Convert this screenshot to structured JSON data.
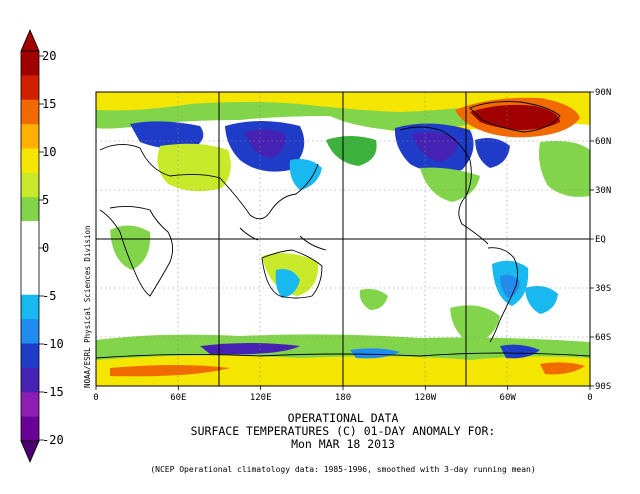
{
  "colorbar": {
    "labels": [
      "20",
      "15",
      "10",
      "5",
      "0",
      "-5",
      "-10",
      "-15",
      "-20"
    ],
    "bands": [
      {
        "color": "#a00000"
      },
      {
        "color": "#d02000"
      },
      {
        "color": "#f06a00"
      },
      {
        "color": "#ffb000"
      },
      {
        "color": "#f5e600"
      },
      {
        "color": "#c8ea2a"
      },
      {
        "color": "#82d54a"
      },
      {
        "color": "#3cb13c"
      },
      {
        "color": "#ffffff"
      },
      {
        "color": "#ffffff"
      },
      {
        "color": "#18b8f0"
      },
      {
        "color": "#208cf0"
      },
      {
        "color": "#1e3cc8"
      },
      {
        "color": "#4622b4"
      },
      {
        "color": "#8c1eb4"
      },
      {
        "color": "#6a0096"
      }
    ]
  },
  "map": {
    "x_ticks": [
      "0",
      "60E",
      "120E",
      "180",
      "120W",
      "60W",
      "0"
    ],
    "y_ticks": [
      "90N",
      "60N",
      "30N",
      "EQ",
      "30S",
      "60S",
      "90S"
    ],
    "side_label": "NOAA/ESRL Physical Sciences Division",
    "regions": [
      {
        "name": "arctic-ocean-band",
        "color": "#c8ea2a"
      },
      {
        "name": "greenland-warm-core",
        "color": "#d02000"
      },
      {
        "name": "greenland-warm-mid",
        "color": "#f06a00"
      },
      {
        "name": "siberia-cold",
        "color": "#1e3cc8"
      },
      {
        "name": "east-siberia-cold",
        "color": "#4622b4"
      },
      {
        "name": "north-america-cold",
        "color": "#1e3cc8"
      },
      {
        "name": "antarctic-warm",
        "color": "#f5e600"
      },
      {
        "name": "southern-ocean-cold",
        "color": "#4622b4"
      }
    ]
  },
  "title": {
    "line1": "OPERATIONAL DATA",
    "line2": "SURFACE TEMPERATURES (C)   01-DAY ANOMALY FOR:",
    "line3": "Mon MAR 18 2013"
  },
  "footnote": "(NCEP Operational climatology data: 1985-1996, smoothed with 3-day running mean)"
}
